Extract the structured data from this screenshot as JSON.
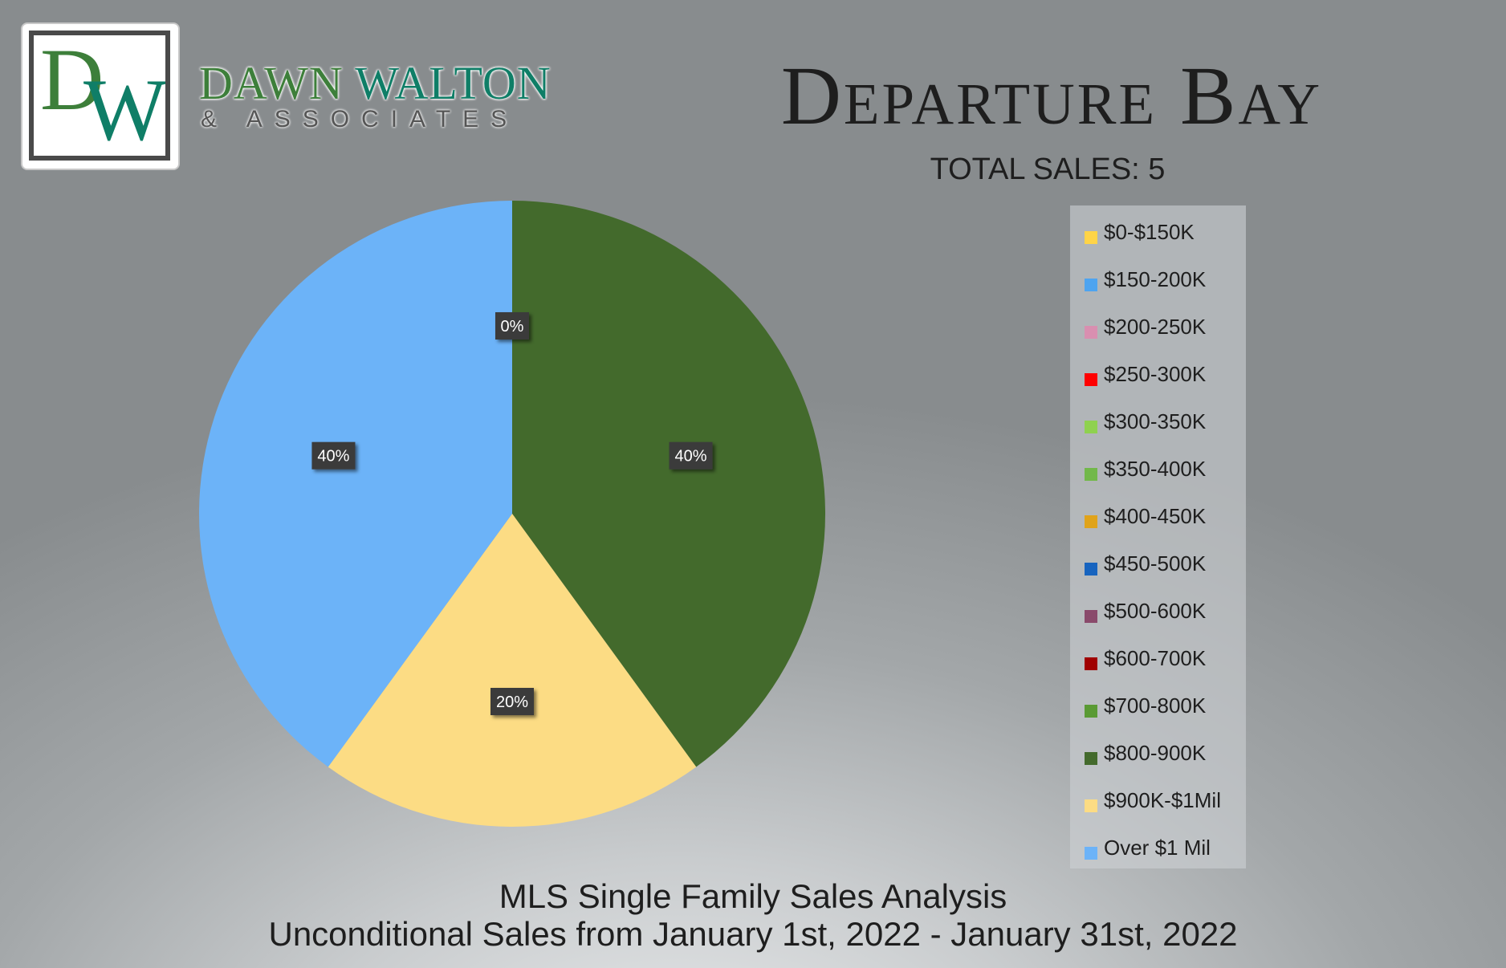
{
  "brand": {
    "logo_letters": "DW",
    "name_part1": "DAWN",
    "name_part2": "WALTON",
    "subname": "& ASSOCIATES"
  },
  "title": "Departure Bay",
  "total_sales": "TOTAL SALES: 5",
  "footer": {
    "line1": "MLS Single Family Sales Analysis",
    "line2": "Unconditional Sales from January 1st, 2022 - January 31st, 2022"
  },
  "chart_data": {
    "type": "pie",
    "categories": [
      "$0-$150K",
      "$150-200K",
      "$200-250K",
      "$250-300K",
      "$300-350K",
      "$350-400K",
      "$400-450K",
      "$450-500K",
      "$500-600K",
      "$600-700K",
      "$700-800K",
      "$800-900K",
      "$900K-$1Mil",
      "Over $1 Mil"
    ],
    "values": [
      0,
      0,
      0,
      0,
      0,
      0,
      0,
      0,
      0,
      0,
      0,
      40,
      20,
      40
    ],
    "unit": "%",
    "colors": [
      "#ffd447",
      "#4ea4f0",
      "#d98fb0",
      "#ff0000",
      "#8fd14f",
      "#72b84a",
      "#e0a31a",
      "#1764bf",
      "#8a4a6b",
      "#a00000",
      "#5a9a34",
      "#436a2c",
      "#fcdc84",
      "#6cb3f8"
    ],
    "data_labels": [
      {
        "text": "0%",
        "category": "$0-$150K"
      },
      {
        "text": "40%",
        "category": "$800-900K"
      },
      {
        "text": "20%",
        "category": "$900K-$1Mil"
      },
      {
        "text": "40%",
        "category": "Over $1 Mil"
      }
    ],
    "legend_position": "right",
    "start_angle": "top, clockwise"
  }
}
